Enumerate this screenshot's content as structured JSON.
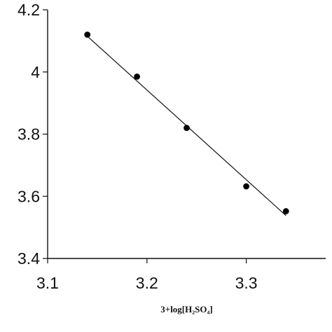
{
  "chart_data": {
    "type": "scatter",
    "title": "",
    "xlabel": "3+log[H₂SO₄]",
    "ylabel": "",
    "xlim": [
      3.1,
      3.38
    ],
    "ylim": [
      3.4,
      4.2
    ],
    "xticks": [
      3.1,
      3.2,
      3.3
    ],
    "xtick_labels": [
      "3.1",
      "3.2",
      "3.3"
    ],
    "yticks": [
      3.4,
      3.6,
      3.8,
      4.0,
      4.2
    ],
    "ytick_labels": [
      "3.4",
      "3.6",
      "3.8",
      "4",
      "4.2"
    ],
    "grid": false,
    "legend": "none",
    "series": [
      {
        "type": "scatter",
        "x": [
          3.14,
          3.19,
          3.24,
          3.3,
          3.34
        ],
        "y": [
          4.12,
          3.985,
          3.82,
          3.632,
          3.552
        ]
      }
    ],
    "trendline": {
      "type": "linear",
      "x": [
        3.14,
        3.34
      ],
      "y": [
        4.115,
        3.538
      ]
    },
    "colors": {
      "axis": "#111111",
      "points": "#000000",
      "line": "#111111",
      "background": "#ffffff"
    }
  }
}
